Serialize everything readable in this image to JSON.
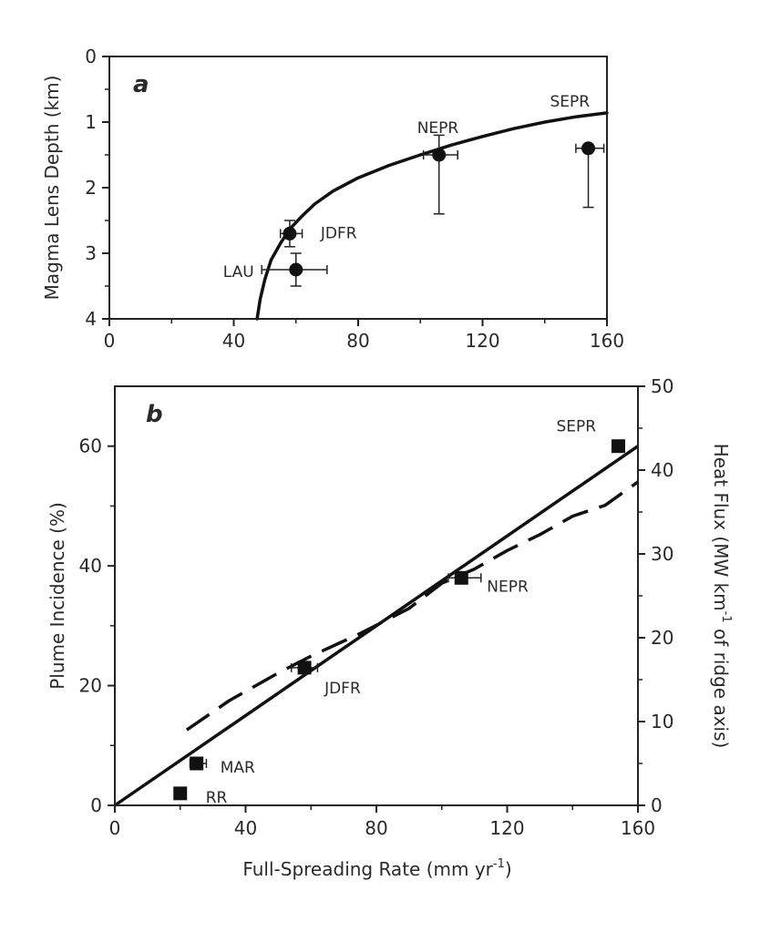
{
  "chart_data": [
    {
      "type": "scatter",
      "panel_label": "a",
      "xlim": [
        0,
        160
      ],
      "ylim": [
        0,
        4
      ],
      "y_inverted": true,
      "x_ticks": [
        "0",
        "40",
        "80",
        "120",
        "160"
      ],
      "y_ticks": [
        "0",
        "1",
        "2",
        "3",
        "4"
      ],
      "ylabel": "Magma Lens Depth (km)",
      "xlabel": "",
      "grid": false,
      "points": [
        {
          "label": "LAU",
          "x": 60,
          "y": 3.25,
          "xerr": [
            49,
            70
          ],
          "yerr": [
            3.0,
            3.5
          ]
        },
        {
          "label": "JDFR",
          "x": 58,
          "y": 2.7,
          "xerr": [
            55,
            62
          ],
          "yerr": [
            2.5,
            2.9
          ]
        },
        {
          "label": "NEPR",
          "x": 106,
          "y": 1.5,
          "xerr": [
            101,
            112
          ],
          "yerr": [
            1.2,
            2.4
          ]
        },
        {
          "label": "SEPR",
          "x": 154,
          "y": 1.4,
          "xerr": [
            150,
            159
          ],
          "yerr": [
            1.4,
            2.3
          ]
        }
      ],
      "curve": {
        "x": [
          47.5,
          48.5,
          50,
          52,
          55,
          58,
          62,
          66,
          72,
          80,
          90,
          100,
          110,
          120,
          130,
          140,
          150,
          160
        ],
        "y": [
          4.0,
          3.7,
          3.4,
          3.1,
          2.85,
          2.63,
          2.43,
          2.25,
          2.05,
          1.85,
          1.66,
          1.5,
          1.35,
          1.22,
          1.1,
          1.0,
          0.92,
          0.86
        ]
      }
    },
    {
      "type": "scatter",
      "panel_label": "b",
      "xlim": [
        0,
        160
      ],
      "ylim": [
        0,
        70
      ],
      "y2lim": [
        0,
        50
      ],
      "x_ticks": [
        "0",
        "40",
        "80",
        "120",
        "160"
      ],
      "y_ticks": [
        "0",
        "20",
        "40",
        "60"
      ],
      "y2_ticks": [
        "0",
        "10",
        "20",
        "30",
        "40",
        "50"
      ],
      "xlabel": "Full-Spreading Rate (mm yr",
      "xlabel_sup": "-1",
      "xlabel_end": ")",
      "ylabel": "Plume Incidence (%)",
      "y2label": "Heat Flux (MW km",
      "y2label_sup": "-1",
      "y2label_end": " of ridge axis)",
      "grid": false,
      "points": [
        {
          "label": "RR",
          "x": 20,
          "y": 2
        },
        {
          "label": "MAR",
          "x": 25,
          "y": 7,
          "xerr": [
            23,
            28
          ]
        },
        {
          "label": "JDFR",
          "x": 58,
          "y": 23,
          "xerr": [
            54,
            62
          ]
        },
        {
          "label": "NEPR",
          "x": 106,
          "y": 38,
          "xerr": [
            102,
            112
          ]
        },
        {
          "label": "SEPR",
          "x": 154,
          "y": 60
        }
      ],
      "series": [
        {
          "style": "solid",
          "axis": "left",
          "x": [
            0,
            160
          ],
          "y": [
            0,
            60
          ]
        },
        {
          "style": "dashed",
          "axis": "right",
          "x": [
            22,
            35,
            50,
            60,
            75,
            90,
            100,
            110,
            120,
            130,
            140,
            150,
            160
          ],
          "y": [
            9,
            12.5,
            15.8,
            17.8,
            20.5,
            23.5,
            26.5,
            28.2,
            30.4,
            32.3,
            34.5,
            35.8,
            38.6
          ]
        }
      ]
    }
  ]
}
